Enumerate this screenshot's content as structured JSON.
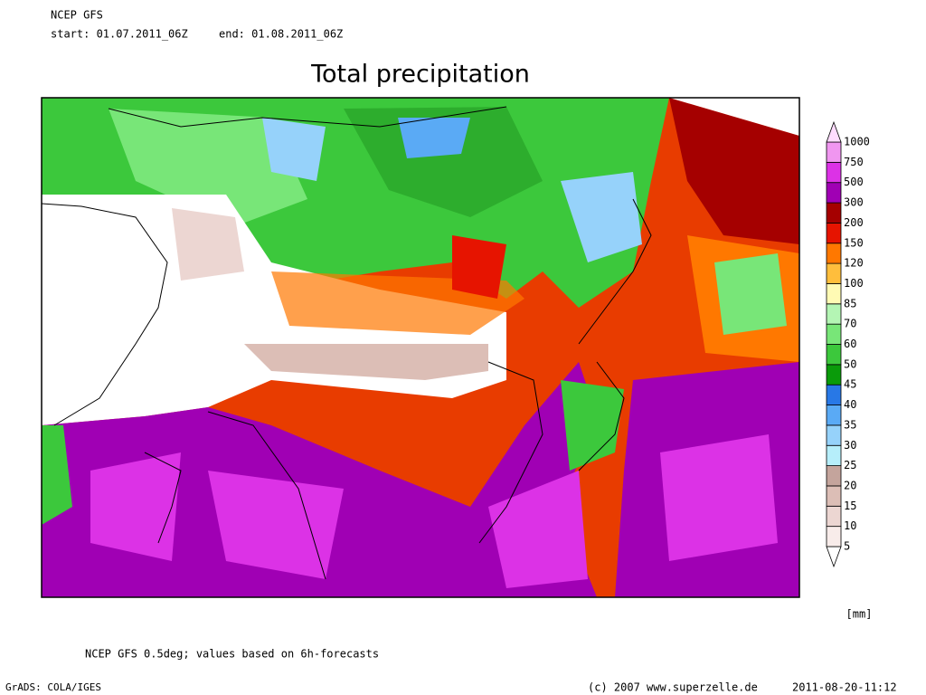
{
  "header": {
    "model": "NCEP GFS",
    "start": "start: 01.07.2011_06Z",
    "end": "end: 01.08.2011_06Z"
  },
  "title": "Total precipitation",
  "legend": {
    "levels": [
      5,
      10,
      15,
      20,
      25,
      30,
      35,
      40,
      45,
      50,
      60,
      70,
      85,
      100,
      120,
      150,
      200,
      300,
      500,
      750,
      1000
    ],
    "colors": [
      "#ffffff",
      "#f8ecea",
      "#ecd6d2",
      "#dcbeb6",
      "#c4a49c",
      "#b6eefa",
      "#96d2fa",
      "#5aaaf5",
      "#2878e6",
      "#0a9b0a",
      "#3cc83c",
      "#78e678",
      "#b4f5b4",
      "#fffab4",
      "#ffbe3c",
      "#ff7800",
      "#e61400",
      "#a50000",
      "#a000b4",
      "#dc32e6",
      "#f096f0",
      "#ffdcff"
    ],
    "unit": "[mm]"
  },
  "note": "NCEP GFS 0.5deg; values based on 6h-forecasts",
  "footer": {
    "software": "GrADS: COLA/IGES",
    "copyright": "(c) 2007 www.superzelle.de",
    "timestamp": "2011-08-20-11:12"
  }
}
